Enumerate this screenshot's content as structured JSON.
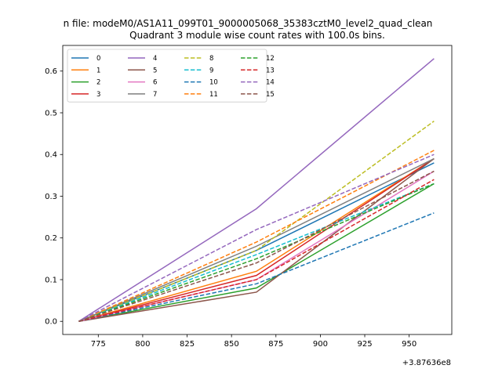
{
  "suptitle": "n file: modeM0/AS1A11_099T01_9000005068_35383cztM0_level2_quad_clean",
  "chart_data": {
    "type": "line",
    "title": "Quadrant 3 module wise count rates with 100.0s bins.",
    "xlabel": "",
    "ylabel": "",
    "x_offset_label": "+3.87636e8",
    "x": [
      764,
      864,
      964
    ],
    "xlim": [
      755,
      974
    ],
    "ylim": [
      -0.0315,
      0.6615
    ],
    "x_ticks": [
      775,
      800,
      825,
      850,
      875,
      900,
      925,
      950
    ],
    "y_ticks": [
      0.0,
      0.1,
      0.2,
      0.3,
      0.4,
      0.5,
      0.6
    ],
    "x_tick_labels": [
      "775",
      "800",
      "825",
      "850",
      "875",
      "900",
      "925",
      "950"
    ],
    "y_tick_labels": [
      "0.0",
      "0.1",
      "0.2",
      "0.3",
      "0.4",
      "0.5",
      "0.6"
    ],
    "grid": false,
    "legend_placement": "top-left",
    "legend_columns": 4,
    "series": [
      {
        "name": "0",
        "values": [
          0,
          0.17,
          0.38
        ],
        "color": "#1f77b4",
        "style": "solid"
      },
      {
        "name": "1",
        "values": [
          0,
          0.12,
          0.39
        ],
        "color": "#ff7f0e",
        "style": "solid"
      },
      {
        "name": "2",
        "values": [
          0,
          0.08,
          0.33
        ],
        "color": "#2ca02c",
        "style": "solid"
      },
      {
        "name": "3",
        "values": [
          0,
          0.11,
          0.39
        ],
        "color": "#d62728",
        "style": "solid"
      },
      {
        "name": "4",
        "values": [
          0,
          0.27,
          0.63
        ],
        "color": "#9467bd",
        "style": "solid"
      },
      {
        "name": "5",
        "values": [
          0,
          0.07,
          0.39
        ],
        "color": "#8c564b",
        "style": "solid"
      },
      {
        "name": "6",
        "values": [
          0,
          0.1,
          0.36
        ],
        "color": "#e377c2",
        "style": "solid"
      },
      {
        "name": "7",
        "values": [
          0,
          0.18,
          0.39
        ],
        "color": "#7f7f7f",
        "style": "solid"
      },
      {
        "name": "8",
        "values": [
          0,
          0.17,
          0.48
        ],
        "color": "#bcbd22",
        "style": "dashed"
      },
      {
        "name": "9",
        "values": [
          0,
          0.16,
          0.33
        ],
        "color": "#17becf",
        "style": "dashed"
      },
      {
        "name": "10",
        "values": [
          0,
          0.09,
          0.26
        ],
        "color": "#1f77b4",
        "style": "dashed"
      },
      {
        "name": "11",
        "values": [
          0,
          0.19,
          0.41
        ],
        "color": "#ff7f0e",
        "style": "dashed"
      },
      {
        "name": "12",
        "values": [
          0,
          0.15,
          0.33
        ],
        "color": "#2ca02c",
        "style": "dashed"
      },
      {
        "name": "13",
        "values": [
          0,
          0.1,
          0.34
        ],
        "color": "#d62728",
        "style": "dashed"
      },
      {
        "name": "14",
        "values": [
          0,
          0.22,
          0.4
        ],
        "color": "#9467bd",
        "style": "dashed"
      },
      {
        "name": "15",
        "values": [
          0,
          0.14,
          0.36
        ],
        "color": "#8c564b",
        "style": "dashed"
      }
    ]
  }
}
